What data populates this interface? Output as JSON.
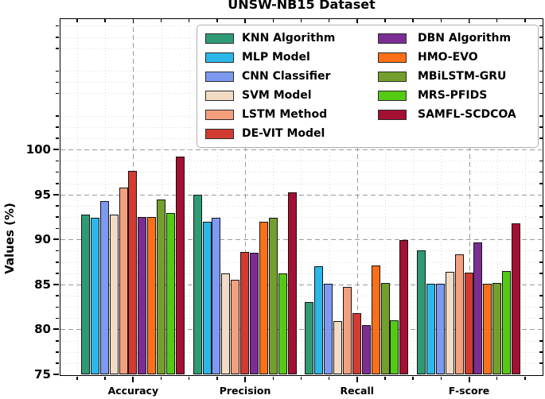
{
  "title": "UNSW-NB15 Dataset",
  "chart_data": {
    "type": "bar",
    "title": "UNSW-NB15 Dataset",
    "xlabel": "",
    "ylabel": "Values (%)",
    "categories": [
      "Accuracy",
      "Precision",
      "Recall",
      "F-score"
    ],
    "yticks": [
      75,
      80,
      85,
      90,
      95,
      100
    ],
    "ylim": [
      75,
      114.5
    ],
    "grid": "major dashed gray + minor dotted light, both axes",
    "legend_position": "upper center inside plot, 2 columns",
    "series": [
      {
        "name": "KNN Algorithm",
        "color": "#2E9B74",
        "values": [
          92.8,
          95.0,
          83.0,
          88.8
        ]
      },
      {
        "name": "MLP Model",
        "color": "#2BB7EA",
        "values": [
          92.4,
          92.0,
          87.0,
          85.1
        ]
      },
      {
        "name": "CNN Classifier",
        "color": "#7D9AF0",
        "values": [
          94.3,
          92.4,
          85.1,
          85.1
        ]
      },
      {
        "name": "SVM Model",
        "color": "#F1DBC4",
        "values": [
          92.8,
          86.2,
          80.9,
          86.4
        ]
      },
      {
        "name": "LSTM Method",
        "color": "#F5A07D",
        "values": [
          95.8,
          85.5,
          84.7,
          88.3
        ]
      },
      {
        "name": "DE-VIT Model",
        "color": "#D13B31",
        "values": [
          97.6,
          88.6,
          81.8,
          86.3
        ]
      },
      {
        "name": "DBN Algorithm",
        "color": "#7C2D94",
        "values": [
          92.5,
          88.5,
          80.5,
          89.7
        ]
      },
      {
        "name": "HMO-EVO",
        "color": "#FA7019",
        "values": [
          92.5,
          92.0,
          87.1,
          85.1
        ]
      },
      {
        "name": "MBiLSTM-GRU",
        "color": "#73A02C",
        "values": [
          94.4,
          92.4,
          85.2,
          85.2
        ]
      },
      {
        "name": "MRS-PFIDS",
        "color": "#54CA14",
        "values": [
          92.9,
          86.2,
          81.0,
          86.5
        ]
      },
      {
        "name": "SAMFL-SCDCOA",
        "color": "#A41031",
        "values": [
          99.2,
          95.2,
          89.9,
          91.8
        ]
      }
    ],
    "legend_columns": [
      [
        0,
        1,
        2,
        3,
        4,
        5
      ],
      [
        6,
        7,
        8,
        9,
        10
      ]
    ]
  }
}
